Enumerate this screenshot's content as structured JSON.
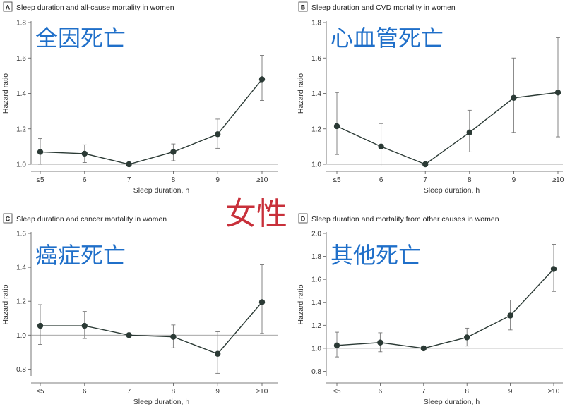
{
  "overlay_center": "女性",
  "chart_data": [
    {
      "type": "line",
      "letter": "A",
      "title": "Sleep duration and all-cause mortality in women",
      "overlay": "全因死亡",
      "xlabel": "Sleep duration, h",
      "ylabel": "Hazard ratio",
      "categories": [
        "≤5",
        "6",
        "7",
        "8",
        "9",
        "≥10"
      ],
      "yticks": [
        1.0,
        1.2,
        1.4,
        1.6,
        1.8
      ],
      "ylim": [
        1.0,
        1.8
      ],
      "reference": 1.0,
      "series": [
        {
          "values": [
            1.07,
            1.06,
            1.0,
            1.07,
            1.17,
            1.48
          ],
          "lower": [
            1.0,
            1.01,
            1.0,
            1.02,
            1.09,
            1.36
          ],
          "upper": [
            1.145,
            1.11,
            1.0,
            1.115,
            1.255,
            1.615
          ]
        }
      ]
    },
    {
      "type": "line",
      "letter": "B",
      "title": "Sleep duration and CVD mortality in women",
      "overlay": "心血管死亡",
      "xlabel": "Sleep duration, h",
      "ylabel": "Hazard ratio",
      "categories": [
        "≤5",
        "6",
        "7",
        "8",
        "9",
        "≥10"
      ],
      "yticks": [
        1.0,
        1.2,
        1.4,
        1.6,
        1.8
      ],
      "ylim": [
        1.0,
        1.8
      ],
      "reference": 1.0,
      "series": [
        {
          "values": [
            1.215,
            1.1,
            1.0,
            1.18,
            1.375,
            1.405
          ],
          "lower": [
            1.055,
            0.99,
            1.0,
            1.07,
            1.18,
            1.155
          ],
          "upper": [
            1.405,
            1.23,
            1.0,
            1.305,
            1.6,
            1.715
          ]
        }
      ]
    },
    {
      "type": "line",
      "letter": "C",
      "title": "Sleep duration and cancer mortality in women",
      "overlay": "癌症死亡",
      "xlabel": "Sleep duration, h",
      "ylabel": "Hazard ratio",
      "categories": [
        "≤5",
        "6",
        "7",
        "8",
        "9",
        "≥10"
      ],
      "yticks": [
        0.8,
        1.0,
        1.2,
        1.4,
        1.6
      ],
      "ylim": [
        0.76,
        1.6
      ],
      "reference": 1.0,
      "series": [
        {
          "values": [
            1.055,
            1.055,
            1.0,
            0.99,
            0.89,
            1.195
          ],
          "lower": [
            0.945,
            0.98,
            1.0,
            0.925,
            0.775,
            1.01
          ],
          "upper": [
            1.18,
            1.14,
            1.0,
            1.06,
            1.02,
            1.415
          ]
        }
      ]
    },
    {
      "type": "line",
      "letter": "D",
      "title": "Sleep duration and mortality from other causes in women",
      "overlay": "其他死亡",
      "xlabel": "Sleep duration, h",
      "ylabel": "Hazard ratio",
      "categories": [
        "≤5",
        "6",
        "7",
        "8",
        "9",
        "≥10"
      ],
      "yticks": [
        0.8,
        1.0,
        1.2,
        1.4,
        1.6,
        1.8,
        2.0
      ],
      "ylim": [
        0.76,
        2.0
      ],
      "reference": 1.0,
      "series": [
        {
          "values": [
            1.025,
            1.05,
            1.0,
            1.095,
            1.285,
            1.69
          ],
          "lower": [
            0.925,
            0.97,
            1.0,
            1.02,
            1.16,
            1.495
          ],
          "upper": [
            1.14,
            1.135,
            1.0,
            1.175,
            1.42,
            1.905
          ]
        }
      ]
    }
  ]
}
